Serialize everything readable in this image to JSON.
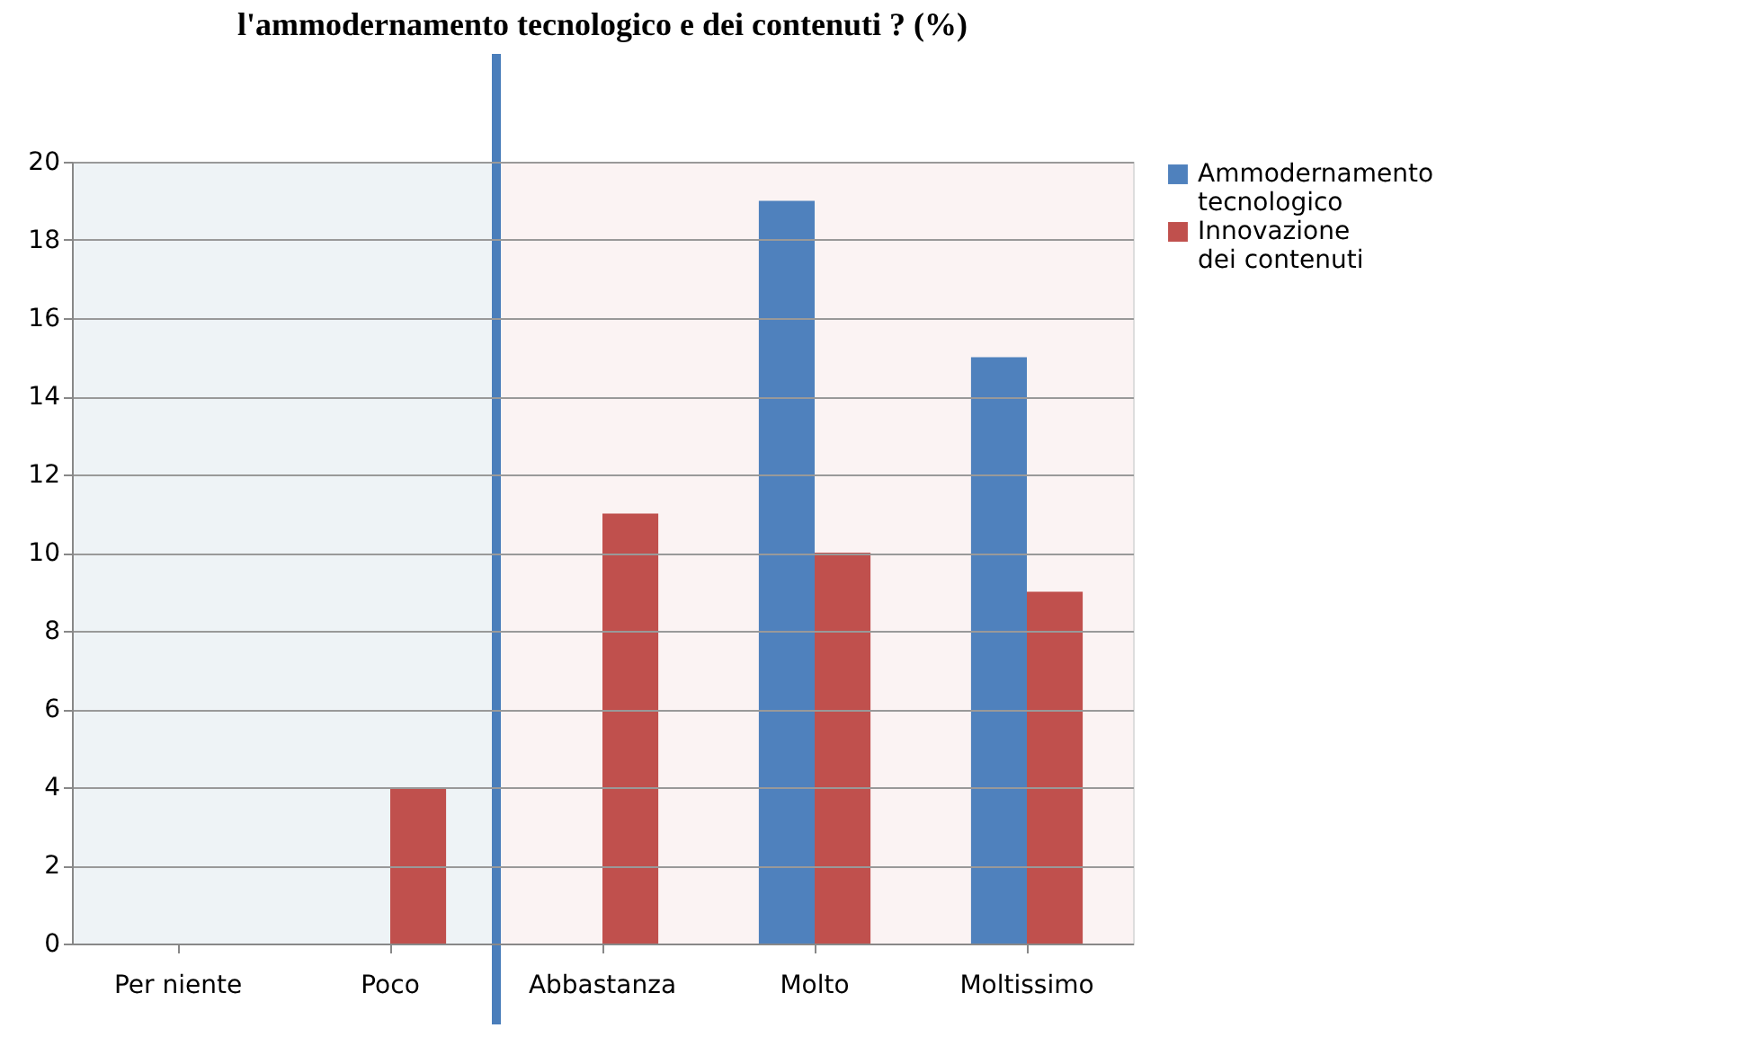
{
  "chart_data": {
    "type": "bar",
    "title": "l'ammodernamento tecnologico e dei contenuti ? (%)",
    "categories": [
      "Per niente",
      "Poco",
      "Abbastanza",
      "Molto",
      "Moltissimo"
    ],
    "series": [
      {
        "name": "Ammodernamento tecnologico",
        "color": "#4f81bd",
        "values": [
          null,
          null,
          null,
          19,
          15
        ]
      },
      {
        "name": "Innovazione dei contenuti",
        "color": "#c0504d",
        "values": [
          null,
          4,
          11,
          10,
          9
        ]
      }
    ],
    "ylim": [
      0,
      20
    ],
    "yticks": [
      0,
      2,
      4,
      6,
      8,
      10,
      12,
      14,
      16,
      18,
      20
    ],
    "grid": "y",
    "legend": "right",
    "bands": [
      {
        "axis": "x",
        "from": "Per niente",
        "to": "Poco",
        "color": "#eef3f6"
      },
      {
        "axis": "x",
        "from": "Abbastanza",
        "to": "Moltissimo",
        "color": "#fbf3f3"
      }
    ],
    "ref_lines": [
      {
        "axis": "x",
        "value": "Abbastanza",
        "color": "#4a7ebb"
      }
    ]
  }
}
